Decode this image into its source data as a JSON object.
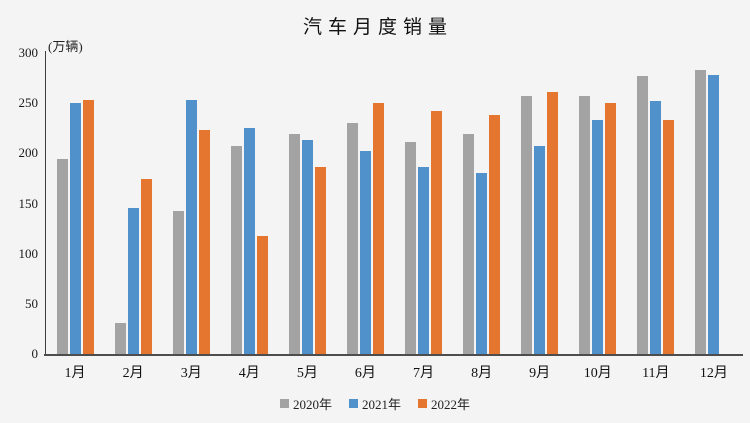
{
  "page": {
    "background": "#f4f4f5"
  },
  "chart_data": {
    "type": "bar",
    "title": "汽车月度销量",
    "y_axis_unit_label": "(万辆)",
    "xlabel": "",
    "ylabel": "万辆",
    "categories": [
      "1月",
      "2月",
      "3月",
      "4月",
      "5月",
      "6月",
      "7月",
      "8月",
      "9月",
      "10月",
      "11月",
      "12月"
    ],
    "series": [
      {
        "name": "2020年",
        "color": "#a3a3a3",
        "values": [
          194,
          31,
          143,
          207,
          219,
          230,
          211,
          219,
          257,
          257,
          277,
          283
        ]
      },
      {
        "name": "2021年",
        "color": "#5090cb",
        "values": [
          250,
          146,
          253,
          225,
          213,
          202,
          186,
          180,
          207,
          233,
          252,
          278
        ]
      },
      {
        "name": "2022年",
        "color": "#e5762f",
        "values": [
          253,
          174,
          223,
          118,
          186,
          250,
          242,
          238,
          261,
          250,
          233,
          null
        ]
      }
    ],
    "ylim": [
      0,
      300
    ],
    "y_ticks": [
      0,
      50,
      100,
      150,
      200,
      250,
      300
    ],
    "grid": false,
    "legend_position": "bottom",
    "axis_color": "#4d4d4d"
  }
}
